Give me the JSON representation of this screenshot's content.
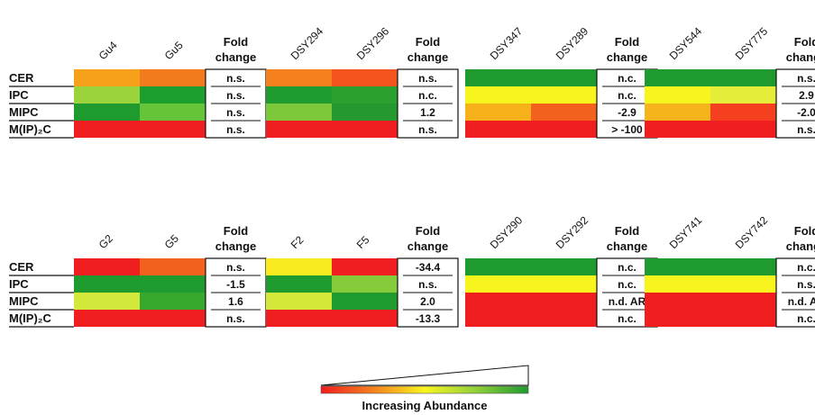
{
  "chart_data": {
    "type": "heatmap",
    "row_labels": [
      "CER",
      "IPC",
      "MIPC",
      "M(IP)₂C"
    ],
    "fold_header_line1": "Fold",
    "fold_header_line2": "change",
    "panels": [
      {
        "groups": [
          {
            "columns": [
              "Gu4",
              "Gu5"
            ],
            "cell_colors": [
              [
                "#f7a11b",
                "#f47a1e"
              ],
              [
                "#9ad33b",
                "#1d9f2e"
              ],
              [
                "#1f9a2f",
                "#66c43a"
              ],
              [
                "#f01e1e",
                "#f01e1e"
              ]
            ],
            "fold_change": [
              "n.s.",
              "n.s.",
              "n.s.",
              "n.s."
            ]
          },
          {
            "columns": [
              "DSY294",
              "DSY296"
            ],
            "cell_colors": [
              [
                "#f7801e",
                "#f4531e"
              ],
              [
                "#1f9a2f",
                "#2aa02e"
              ],
              [
                "#7cc83a",
                "#23992f"
              ],
              [
                "#f01e1e",
                "#f01e1e"
              ]
            ],
            "fold_change": [
              "n.s.",
              "n.c.",
              "1.2",
              "n.s."
            ]
          },
          {
            "columns": [
              "DSY347",
              "DSY289"
            ],
            "cell_colors": [
              [
                "#1f9a2f",
                "#1f9a2f"
              ],
              [
                "#f8f51e",
                "#f8f51e"
              ],
              [
                "#f7b21b",
                "#f4601e"
              ],
              [
                "#f01e1e",
                "#f01e1e"
              ]
            ],
            "fold_change": [
              "n.c.",
              "n.c.",
              "-2.9",
              "> -100"
            ]
          },
          {
            "columns": [
              "DSY544",
              "DSY775"
            ],
            "cell_colors": [
              [
                "#1f9a2f",
                "#1f9a2f"
              ],
              [
                "#f8f51e",
                "#e4ee3a"
              ],
              [
                "#f7b31b",
                "#f4401e"
              ],
              [
                "#f01e1e",
                "#f01e1e"
              ]
            ],
            "fold_change": [
              "n.s.",
              "2.9",
              "-2.0",
              "n.s."
            ]
          }
        ]
      },
      {
        "groups": [
          {
            "columns": [
              "G2",
              "G5"
            ],
            "cell_colors": [
              [
                "#f01e1e",
                "#f4601e"
              ],
              [
                "#1f9a2f",
                "#1f9a2f"
              ],
              [
                "#d2e83a",
                "#37a82e"
              ],
              [
                "#f01e1e",
                "#f01e1e"
              ]
            ],
            "fold_change": [
              "n.s.",
              "-1.5",
              "1.6",
              "n.s."
            ]
          },
          {
            "columns": [
              "F2",
              "F5"
            ],
            "cell_colors": [
              [
                "#f8ea1e",
                "#f01e1e"
              ],
              [
                "#1f9a2f",
                "#86cc3a"
              ],
              [
                "#d4e83a",
                "#1f9a2f"
              ],
              [
                "#f01e1e",
                "#f01e1e"
              ]
            ],
            "fold_change": [
              "-34.4",
              "n.s.",
              "2.0",
              "-13.3"
            ]
          },
          {
            "columns": [
              "DSY290",
              "DSY292"
            ],
            "cell_colors": [
              [
                "#1f9a2f",
                "#1f9a2f"
              ],
              [
                "#f8f51e",
                "#f8f51e"
              ],
              [
                "#f01e1e",
                "#f01e1e"
              ],
              [
                "#f01e1e",
                "#f01e1e"
              ]
            ],
            "fold_change": [
              "n.c.",
              "n.c.",
              "n.d. AR",
              "n.c."
            ]
          },
          {
            "columns": [
              "DSY741",
              "DSY742"
            ],
            "cell_colors": [
              [
                "#1f9a2f",
                "#1f9a2f"
              ],
              [
                "#f8f51e",
                "#f8f51e"
              ],
              [
                "#f01e1e",
                "#f01e1e"
              ],
              [
                "#f01e1e",
                "#f01e1e"
              ]
            ],
            "fold_change": [
              "n.c.",
              "n.s.",
              "n.d. AR",
              "n.c."
            ]
          }
        ]
      }
    ],
    "legend": {
      "label": "Increasing Abundance",
      "gradient": [
        "#f01e1e",
        "#f4801e",
        "#f8f51e",
        "#8fd03a",
        "#1f9a2f"
      ]
    }
  }
}
